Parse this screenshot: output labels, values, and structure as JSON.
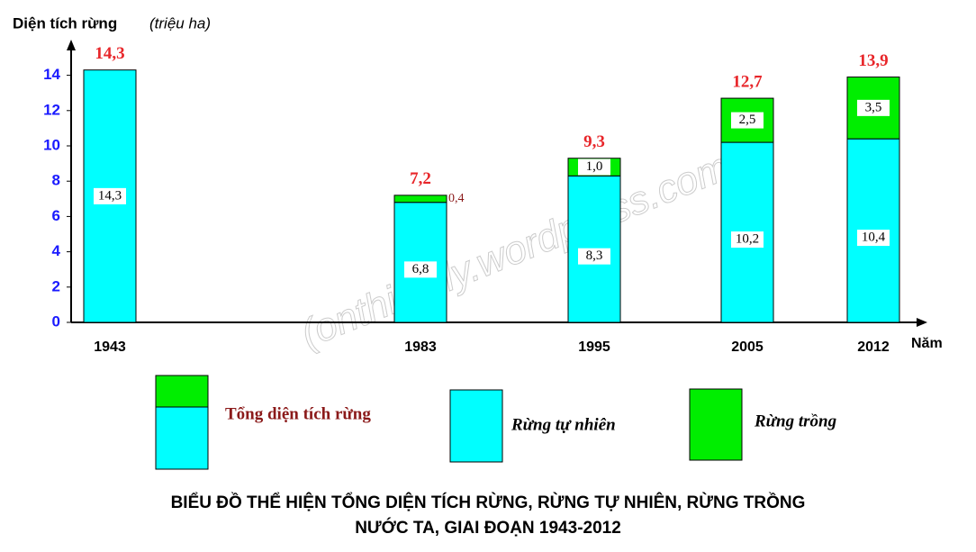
{
  "chart_data": {
    "type": "stacked_bar",
    "title": [
      "BIỂU ĐỒ THỂ HIỆN TỔNG DIỆN TÍCH RỪNG, RỪNG TỰ NHIÊN, RỪNG TRỒNG",
      "NƯỚC TA, GIAI ĐOẠN 1943-2012"
    ],
    "y_label": "Diện tích rừng",
    "y_unit": "(triệu ha)",
    "x_label": "Năm",
    "watermark": "(onthidaily.wordpress.com)",
    "categories": [
      "1943",
      "1983",
      "1995",
      "2005",
      "2012"
    ],
    "series": [
      {
        "name": "Rừng tự nhiên",
        "color": "#00ffff",
        "values": [
          14.3,
          6.8,
          8.3,
          10.2,
          10.4
        ],
        "value_labels": [
          "14,3",
          "6,8",
          "8,3",
          "10,2",
          "10,4"
        ]
      },
      {
        "name": "Rừng trồng",
        "color": "#00ee00",
        "values": [
          null,
          0.4,
          1.0,
          2.5,
          3.5
        ],
        "value_labels": [
          null,
          "0,4",
          "1,0",
          "2,5",
          "3,5"
        ]
      }
    ],
    "totals": {
      "name": "Tổng diện tích rừng",
      "color": "#e8262a",
      "values": [
        14.3,
        7.2,
        9.3,
        12.7,
        13.9
      ],
      "value_labels": [
        "14,3",
        "7,2",
        "9,3",
        "12,7",
        "13,9"
      ]
    },
    "ylim": [
      0,
      15
    ],
    "yticks": [
      0,
      2,
      4,
      6,
      8,
      10,
      12,
      14
    ],
    "grid": false
  }
}
